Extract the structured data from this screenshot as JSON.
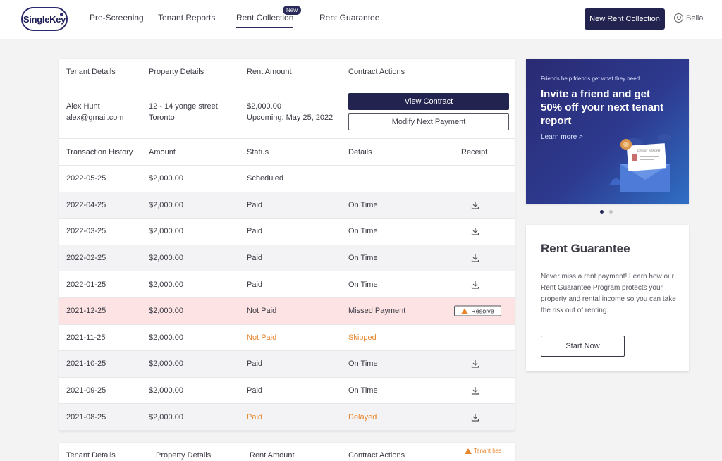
{
  "header": {
    "logo": "SingleKey",
    "nav": [
      {
        "label": "Pre-Screening"
      },
      {
        "label": "Tenant Reports"
      },
      {
        "label": "Rent Collection",
        "badge": "New",
        "active": true
      },
      {
        "label": "Rent Guarantee"
      }
    ],
    "new_button": "New Rent Collection",
    "user": "Bella"
  },
  "tenant_card": {
    "headers": [
      "Tenant Details",
      "Property Details",
      "Rent Amount",
      "Contract Actions"
    ],
    "tenant_name": "Alex Hunt",
    "tenant_email": "alex@gmail.com",
    "property_line1": "12 - 14 yonge street,",
    "property_line2": "Toronto",
    "rent_amount": "$2,000.00",
    "rent_upcoming": "Upcoming: May 25, 2022",
    "view_contract": "View Contract",
    "modify_payment": "Modify Next Payment",
    "tx_headers": [
      "Transaction History",
      "Amount",
      "Status",
      "Details",
      "Receipt"
    ],
    "transactions": [
      {
        "date": "2022-05-25",
        "amount": "$2,000.00",
        "status": "Scheduled",
        "details": ""
      },
      {
        "date": "2022-04-25",
        "amount": "$2,000.00",
        "status": "Paid",
        "details": "On Time"
      },
      {
        "date": "2022-03-25",
        "amount": "$2,000.00",
        "status": "Paid",
        "details": "On Time"
      },
      {
        "date": "2022-02-25",
        "amount": "$2,000.00",
        "status": "Paid",
        "details": "On Time"
      },
      {
        "date": "2022-01-25",
        "amount": "$2,000.00",
        "status": "Paid",
        "details": "On Time"
      },
      {
        "date": "2021-12-25",
        "amount": "$2,000.00",
        "status": "Not Paid",
        "details": "Missed Payment",
        "action": "Resolve"
      },
      {
        "date": "2021-11-25",
        "amount": "$2,000.00",
        "status": "Not Paid",
        "details": "Skipped"
      },
      {
        "date": "2021-10-25",
        "amount": "$2,000.00",
        "status": "Paid",
        "details": "On Time"
      },
      {
        "date": "2021-09-25",
        "amount": "$2,000.00",
        "status": "Paid",
        "details": "On Time"
      },
      {
        "date": "2021-08-25",
        "amount": "$2,000.00",
        "status": "Paid",
        "details": "Delayed"
      }
    ]
  },
  "second_card": {
    "headers": [
      "Tenant Details",
      "Property Details",
      "Rent Amount",
      "Contract Actions"
    ],
    "warning": "Tenant has"
  },
  "banner": {
    "small": "Friends help friends get what they need.",
    "headline": "Invite a friend and get 50% off your next tenant report",
    "link": "Learn more >",
    "illustration_text": "CREDIT REPORT"
  },
  "rent_guarantee": {
    "title": "Rent Guarantee",
    "description": "Never miss a rent payment! Learn how our Rent Guarantee Program protects your property and rental income so you can take the risk out of renting.",
    "button": "Start Now"
  },
  "colors": {
    "primary": "#23234f",
    "warning": "#e8862e",
    "missed_row": "#fde3e3"
  }
}
